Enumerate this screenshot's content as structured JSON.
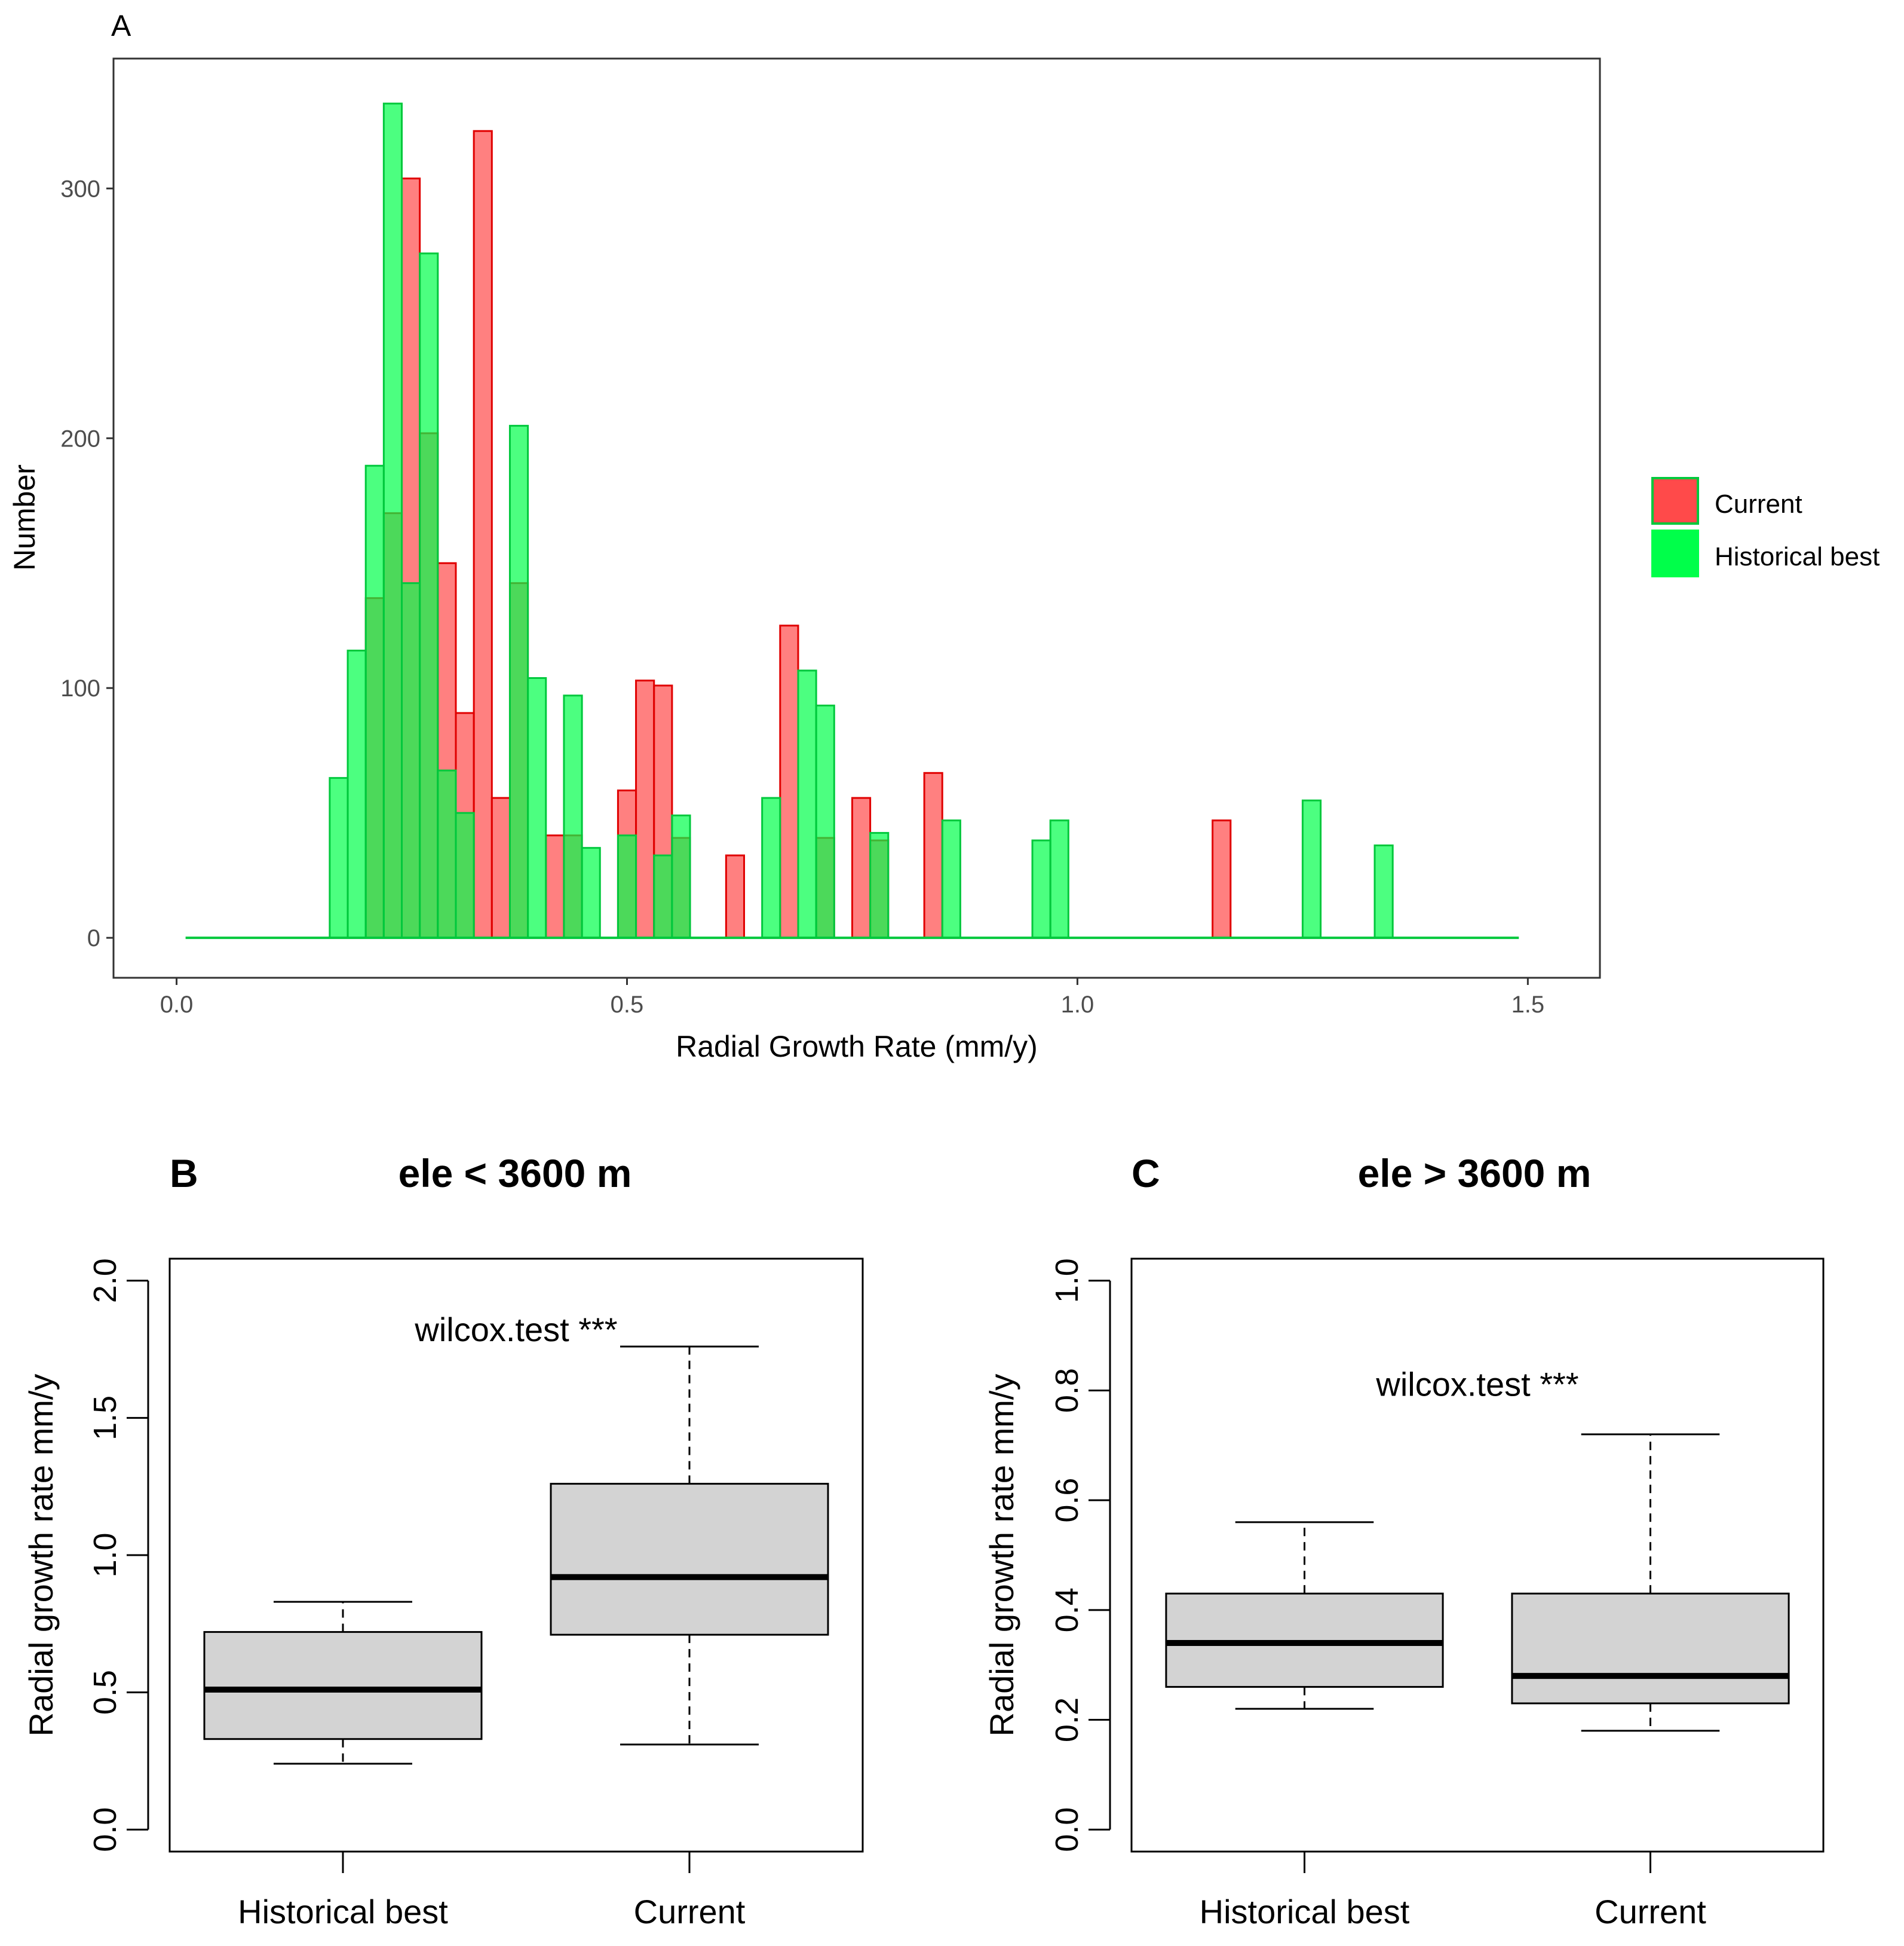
{
  "colors": {
    "current_fill": "#FF4A4A",
    "current_stroke": "#E00000",
    "historical_fill": "#00FF4A",
    "historical_stroke": "#00C83C",
    "box_fill": "#D3D3D3"
  },
  "chart_data": [
    {
      "panel": "A",
      "type": "bar",
      "subtype": "overlaid histogram",
      "panel_label": "A",
      "title": "",
      "xlabel": "Radial Growth Rate (mm/y)",
      "ylabel": "Number",
      "xlim": [
        -0.07,
        1.58
      ],
      "ylim": [
        -16,
        352
      ],
      "xticks": [
        0.0,
        0.5,
        1.0,
        1.5
      ],
      "xtick_labels": [
        "0.0",
        "0.5",
        "1.0",
        "1.5"
      ],
      "yticks": [
        0,
        100,
        200,
        300
      ],
      "ytick_labels": [
        "0",
        "100",
        "200",
        "300"
      ],
      "grid": false,
      "legend_position": "right",
      "bin_width": 0.02,
      "baseline_range": [
        0.01,
        1.49
      ],
      "series": [
        {
          "name": "Current",
          "bins": [
            {
              "x": 0.22,
              "y": 136
            },
            {
              "x": 0.24,
              "y": 170
            },
            {
              "x": 0.26,
              "y": 304
            },
            {
              "x": 0.28,
              "y": 202
            },
            {
              "x": 0.3,
              "y": 150
            },
            {
              "x": 0.32,
              "y": 90
            },
            {
              "x": 0.34,
              "y": 323
            },
            {
              "x": 0.36,
              "y": 56
            },
            {
              "x": 0.38,
              "y": 142
            },
            {
              "x": 0.42,
              "y": 41
            },
            {
              "x": 0.44,
              "y": 41
            },
            {
              "x": 0.5,
              "y": 59
            },
            {
              "x": 0.52,
              "y": 103
            },
            {
              "x": 0.54,
              "y": 101
            },
            {
              "x": 0.56,
              "y": 40
            },
            {
              "x": 0.62,
              "y": 33
            },
            {
              "x": 0.68,
              "y": 125
            },
            {
              "x": 0.72,
              "y": 40
            },
            {
              "x": 0.76,
              "y": 56
            },
            {
              "x": 0.78,
              "y": 39
            },
            {
              "x": 0.84,
              "y": 66
            },
            {
              "x": 1.16,
              "y": 47
            }
          ]
        },
        {
          "name": "Historical best",
          "bins": [
            {
              "x": 0.18,
              "y": 64
            },
            {
              "x": 0.2,
              "y": 115
            },
            {
              "x": 0.22,
              "y": 189
            },
            {
              "x": 0.24,
              "y": 334
            },
            {
              "x": 0.26,
              "y": 142
            },
            {
              "x": 0.28,
              "y": 274
            },
            {
              "x": 0.3,
              "y": 67
            },
            {
              "x": 0.32,
              "y": 50
            },
            {
              "x": 0.38,
              "y": 205
            },
            {
              "x": 0.4,
              "y": 104
            },
            {
              "x": 0.44,
              "y": 97
            },
            {
              "x": 0.46,
              "y": 36
            },
            {
              "x": 0.5,
              "y": 41
            },
            {
              "x": 0.54,
              "y": 33
            },
            {
              "x": 0.56,
              "y": 49
            },
            {
              "x": 0.66,
              "y": 56
            },
            {
              "x": 0.7,
              "y": 107
            },
            {
              "x": 0.72,
              "y": 93
            },
            {
              "x": 0.78,
              "y": 42
            },
            {
              "x": 0.86,
              "y": 47
            },
            {
              "x": 0.96,
              "y": 39
            },
            {
              "x": 0.98,
              "y": 47
            },
            {
              "x": 1.26,
              "y": 55
            },
            {
              "x": 1.34,
              "y": 37
            }
          ]
        }
      ]
    },
    {
      "panel": "B",
      "type": "boxplot",
      "panel_label": "B",
      "title": "ele < 3600 m",
      "ylabel": "Radial growth rate mm/y",
      "categories": [
        "Historical best",
        "Current"
      ],
      "ylim": [
        -0.08,
        2.08
      ],
      "yticks": [
        0.0,
        0.5,
        1.0,
        1.5,
        2.0
      ],
      "ytick_labels": [
        "0.0",
        "0.5",
        "1.0",
        "1.5",
        "2.0"
      ],
      "annotation": "wilcox.test ***",
      "annotation_position": {
        "x": 1.5,
        "y": 1.78
      },
      "boxes": [
        {
          "name": "Historical best",
          "min": 0.24,
          "q1": 0.33,
          "median": 0.51,
          "q3": 0.72,
          "max": 0.83
        },
        {
          "name": "Current",
          "min": 0.31,
          "q1": 0.71,
          "median": 0.92,
          "q3": 1.26,
          "max": 1.76
        }
      ]
    },
    {
      "panel": "C",
      "type": "boxplot",
      "panel_label": "C",
      "title": "ele > 3600 m",
      "ylabel": "Radial growth rate mm/y",
      "categories": [
        "Historical best",
        "Current"
      ],
      "ylim": [
        -0.04,
        1.04
      ],
      "yticks": [
        0.0,
        0.2,
        0.4,
        0.6,
        0.8,
        1.0
      ],
      "ytick_labels": [
        "0.0",
        "0.2",
        "0.4",
        "0.6",
        "0.8",
        "1.0"
      ],
      "annotation": "wilcox.test ***",
      "annotation_position": {
        "x": 1.5,
        "y": 0.79
      },
      "boxes": [
        {
          "name": "Historical best",
          "min": 0.22,
          "q1": 0.26,
          "median": 0.34,
          "q3": 0.43,
          "max": 0.56
        },
        {
          "name": "Current",
          "min": 0.18,
          "q1": 0.23,
          "median": 0.28,
          "q3": 0.43,
          "max": 0.72
        }
      ]
    }
  ]
}
